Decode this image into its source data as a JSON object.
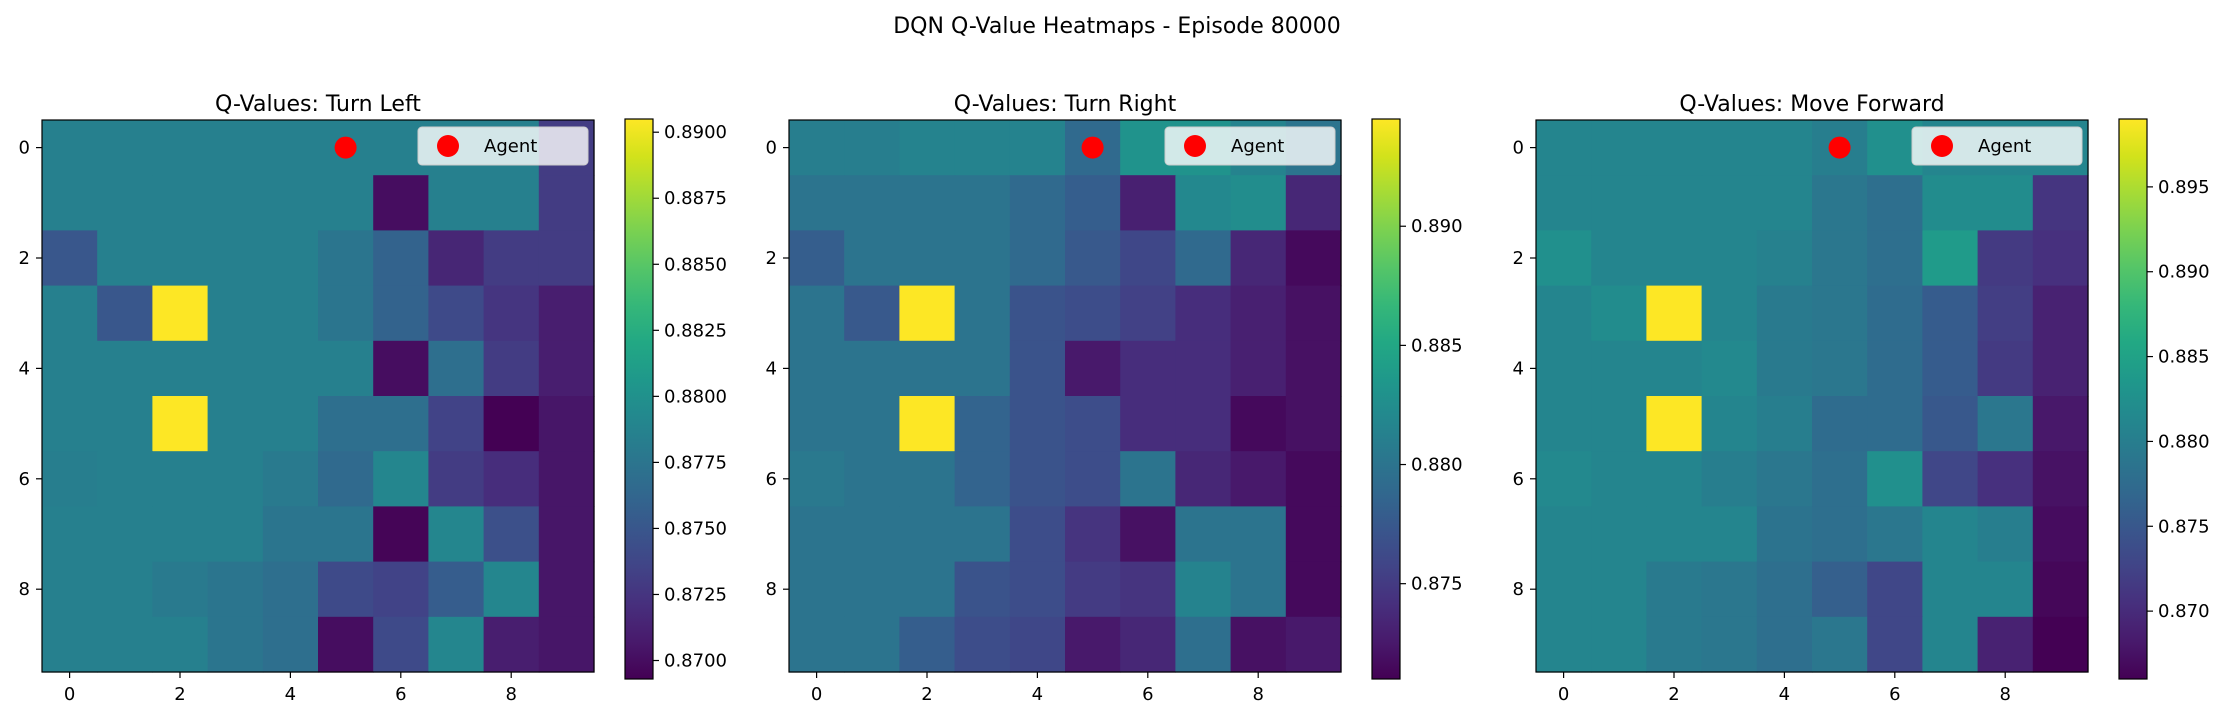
{
  "figure": {
    "suptitle": "DQN Q-Value Heatmaps - Episode 80000"
  },
  "chart_data": [
    {
      "type": "heatmap",
      "title": "Q-Values: Turn Left",
      "colormap": "viridis",
      "x_ticks": [
        "0",
        "2",
        "4",
        "6",
        "8"
      ],
      "y_ticks": [
        "0",
        "2",
        "4",
        "6",
        "8"
      ],
      "vmin": 0.8693,
      "vmax": 0.8905,
      "colorbar_ticks": [
        0.87,
        0.8725,
        0.875,
        0.8775,
        0.88,
        0.8825,
        0.885,
        0.8875,
        0.89
      ],
      "colorbar_tick_labels": [
        "0.8700",
        "0.8725",
        "0.8750",
        "0.8775",
        "0.8800",
        "0.8825",
        "0.8850",
        "0.8875",
        "0.8900"
      ],
      "agent": {
        "x": 5,
        "y": 0,
        "label": "Agent",
        "color": "#ff0000"
      },
      "legend_position": "upper right",
      "values": [
        [
          0.8785,
          0.8785,
          0.8785,
          0.8785,
          0.8785,
          0.8785,
          0.8785,
          0.8785,
          0.8785,
          0.873
        ],
        [
          0.8785,
          0.8785,
          0.8785,
          0.8785,
          0.8785,
          0.8785,
          0.87,
          0.8785,
          0.8785,
          0.873
        ],
        [
          0.875,
          0.8785,
          0.8785,
          0.8785,
          0.8785,
          0.8775,
          0.876,
          0.8715,
          0.873,
          0.873
        ],
        [
          0.8785,
          0.875,
          0.8905,
          0.8785,
          0.8785,
          0.8775,
          0.876,
          0.874,
          0.8725,
          0.871
        ],
        [
          0.8785,
          0.8785,
          0.8785,
          0.8785,
          0.8785,
          0.8785,
          0.87,
          0.877,
          0.873,
          0.871
        ],
        [
          0.8785,
          0.8785,
          0.8905,
          0.8785,
          0.8785,
          0.877,
          0.877,
          0.8735,
          0.8693,
          0.8705
        ],
        [
          0.8783,
          0.8785,
          0.8785,
          0.8785,
          0.878,
          0.8765,
          0.879,
          0.873,
          0.872,
          0.8705
        ],
        [
          0.8785,
          0.8785,
          0.8785,
          0.8785,
          0.8775,
          0.8775,
          0.8695,
          0.879,
          0.8745,
          0.8705
        ],
        [
          0.8785,
          0.8785,
          0.878,
          0.8775,
          0.877,
          0.874,
          0.8735,
          0.8755,
          0.879,
          0.8705
        ],
        [
          0.8785,
          0.8785,
          0.8785,
          0.8775,
          0.877,
          0.87,
          0.874,
          0.879,
          0.871,
          0.8705
        ]
      ]
    },
    {
      "type": "heatmap",
      "title": "Q-Values: Turn Right",
      "colormap": "viridis",
      "x_ticks": [
        "0",
        "2",
        "4",
        "6",
        "8"
      ],
      "y_ticks": [
        "0",
        "2",
        "4",
        "6",
        "8"
      ],
      "vmin": 0.871,
      "vmax": 0.8945,
      "colorbar_ticks": [
        0.875,
        0.88,
        0.885,
        0.89
      ],
      "colorbar_tick_labels": [
        "0.875",
        "0.880",
        "0.885",
        "0.890"
      ],
      "agent": {
        "x": 5,
        "y": 0,
        "label": "Agent",
        "color": "#ff0000"
      },
      "legend_position": "upper right",
      "values": [
        [
          0.881,
          0.881,
          0.8815,
          0.8815,
          0.8815,
          0.879,
          0.883,
          0.883,
          0.8815,
          0.88
        ],
        [
          0.88,
          0.88,
          0.88,
          0.88,
          0.879,
          0.878,
          0.873,
          0.882,
          0.8825,
          0.8735
        ],
        [
          0.878,
          0.88,
          0.88,
          0.88,
          0.879,
          0.8775,
          0.876,
          0.879,
          0.8735,
          0.8715
        ],
        [
          0.88,
          0.8775,
          0.8945,
          0.88,
          0.877,
          0.8765,
          0.8755,
          0.874,
          0.873,
          0.872
        ],
        [
          0.88,
          0.88,
          0.88,
          0.88,
          0.877,
          0.8725,
          0.874,
          0.874,
          0.873,
          0.872
        ],
        [
          0.88,
          0.88,
          0.8945,
          0.8785,
          0.877,
          0.8765,
          0.874,
          0.874,
          0.8715,
          0.872
        ],
        [
          0.8805,
          0.88,
          0.88,
          0.8785,
          0.877,
          0.8765,
          0.88,
          0.8735,
          0.8725,
          0.8715
        ],
        [
          0.88,
          0.88,
          0.88,
          0.88,
          0.8765,
          0.8745,
          0.872,
          0.88,
          0.88,
          0.8715
        ],
        [
          0.88,
          0.88,
          0.88,
          0.877,
          0.8765,
          0.875,
          0.8745,
          0.8815,
          0.88,
          0.8715
        ],
        [
          0.88,
          0.88,
          0.878,
          0.8765,
          0.876,
          0.8725,
          0.8735,
          0.8795,
          0.872,
          0.8725
        ]
      ]
    },
    {
      "type": "heatmap",
      "title": "Q-Values: Move Forward",
      "colormap": "viridis",
      "x_ticks": [
        "0",
        "2",
        "4",
        "6",
        "8"
      ],
      "y_ticks": [
        "0",
        "2",
        "4",
        "6",
        "8"
      ],
      "vmin": 0.866,
      "vmax": 0.899,
      "colorbar_ticks": [
        0.87,
        0.875,
        0.88,
        0.885,
        0.89,
        0.895
      ],
      "colorbar_tick_labels": [
        "0.870",
        "0.875",
        "0.880",
        "0.885",
        "0.890",
        "0.895"
      ],
      "agent": {
        "x": 5,
        "y": 0,
        "label": "Agent",
        "color": "#ff0000"
      },
      "legend_position": "upper right",
      "values": [
        [
          0.881,
          0.881,
          0.881,
          0.881,
          0.881,
          0.88,
          0.8825,
          0.881,
          0.881,
          0.881
        ],
        [
          0.881,
          0.881,
          0.881,
          0.881,
          0.881,
          0.879,
          0.878,
          0.882,
          0.882,
          0.871
        ],
        [
          0.8825,
          0.881,
          0.881,
          0.881,
          0.8805,
          0.879,
          0.878,
          0.884,
          0.8715,
          0.8705
        ],
        [
          0.881,
          0.882,
          0.899,
          0.881,
          0.8795,
          0.879,
          0.8775,
          0.8755,
          0.872,
          0.869
        ],
        [
          0.881,
          0.881,
          0.881,
          0.8815,
          0.8795,
          0.879,
          0.8775,
          0.8755,
          0.8715,
          0.869
        ],
        [
          0.881,
          0.881,
          0.899,
          0.881,
          0.88,
          0.8775,
          0.8775,
          0.875,
          0.879,
          0.868
        ],
        [
          0.8815,
          0.881,
          0.881,
          0.88,
          0.879,
          0.878,
          0.8825,
          0.873,
          0.8705,
          0.8675
        ],
        [
          0.881,
          0.881,
          0.881,
          0.881,
          0.8785,
          0.878,
          0.879,
          0.881,
          0.88,
          0.867
        ],
        [
          0.881,
          0.881,
          0.8795,
          0.879,
          0.878,
          0.876,
          0.873,
          0.881,
          0.881,
          0.8665
        ],
        [
          0.881,
          0.881,
          0.8795,
          0.879,
          0.878,
          0.879,
          0.873,
          0.881,
          0.869,
          0.866
        ]
      ]
    }
  ]
}
